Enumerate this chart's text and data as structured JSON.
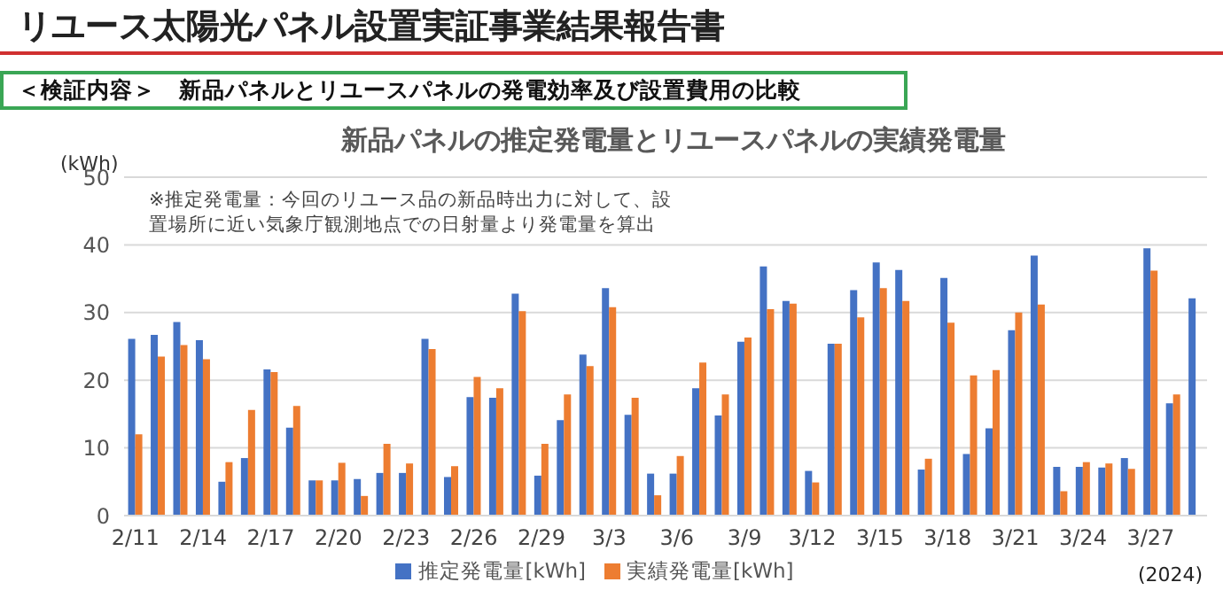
{
  "chart_data": {
    "type": "bar",
    "title": "新品パネルの推定発電量とリユースパネルの実績発電量",
    "ylabel": "(kWh)",
    "annotations": [
      "リユース太陽光パネル設置実証事業結果報告書",
      "＜検証内容＞　新品パネルとリユースパネルの発電効率及び設置費用の比較",
      "※推定発電量：今回のリユース品の新品時出力に対して、設置場所に近い気象庁観測地点での日射量より発電量を算出",
      "(2024)"
    ],
    "categories": [
      "2/11",
      null,
      null,
      "2/14",
      null,
      null,
      "2/17",
      null,
      null,
      "2/20",
      null,
      null,
      "2/23",
      null,
      null,
      "2/26",
      null,
      null,
      "2/29",
      null,
      null,
      "3/3",
      null,
      null,
      "3/6",
      null,
      null,
      "3/9",
      null,
      null,
      "3/12",
      null,
      null,
      "3/15",
      null,
      null,
      "3/18",
      null,
      null,
      "3/21",
      null,
      null,
      "3/24",
      null,
      null,
      "3/27",
      null,
      null
    ],
    "series": [
      {
        "name": "推定発電量[kWh]",
        "color": "#4472c4",
        "values": [
          26.1,
          26.7,
          28.6,
          25.9,
          5.0,
          8.5,
          21.6,
          13.0,
          5.2,
          5.2,
          5.4,
          6.3,
          6.3,
          26.1,
          5.7,
          17.5,
          17.4,
          32.8,
          5.9,
          14.1,
          23.8,
          33.6,
          14.9,
          6.2,
          6.2,
          18.8,
          14.8,
          25.7,
          36.8,
          31.7,
          6.6,
          25.4,
          33.3,
          37.4,
          36.3,
          6.8,
          35.1,
          9.1,
          12.9,
          27.4,
          38.4,
          7.2,
          7.2,
          7.1,
          8.5,
          39.5,
          16.6,
          32.1
        ]
      },
      {
        "name": "実績発電量[kWh]",
        "color": "#ed7d31",
        "values": [
          12.0,
          23.5,
          25.2,
          23.1,
          7.9,
          15.6,
          21.2,
          16.2,
          5.2,
          7.8,
          2.9,
          10.6,
          7.7,
          24.6,
          7.3,
          20.5,
          18.8,
          30.2,
          10.6,
          17.9,
          22.1,
          30.8,
          17.4,
          3.0,
          8.8,
          22.6,
          17.9,
          26.3,
          30.5,
          31.3,
          4.9,
          25.4,
          29.3,
          33.6,
          31.7,
          8.4,
          28.5,
          20.7,
          21.5,
          30.0,
          31.2,
          3.6,
          7.9,
          7.7,
          6.9,
          36.2,
          17.9,
          null
        ]
      }
    ],
    "ylim": [
      0,
      50
    ],
    "yticks": [
      0,
      10,
      20,
      30,
      40,
      50
    ],
    "grid": "y",
    "legend": "bottom"
  }
}
